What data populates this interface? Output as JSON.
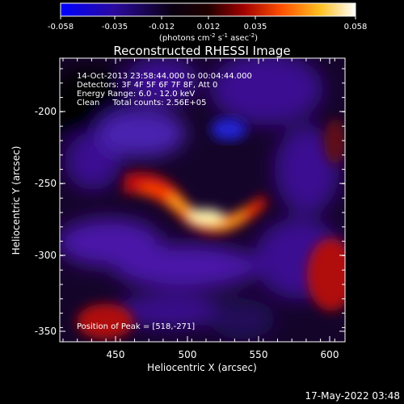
{
  "colorbar": {
    "ticks": [
      "-0.058",
      "-0.035",
      "-0.012",
      "0.012",
      "0.035",
      "0.058"
    ],
    "units_prefix": "(photons cm",
    "units_exp1": "-2",
    "units_mid": " s",
    "units_exp2": "-1",
    "units_mid2": " asec",
    "units_exp3": "-2",
    "units_suffix": ")",
    "colors": [
      "#0000ff",
      "#400080",
      "#000000",
      "#800000",
      "#ff3000",
      "#ff9000",
      "#ffe040",
      "#ffffff"
    ]
  },
  "plot": {
    "title": "Reconstructed RHESSI Image",
    "xlabel": "Heliocentric X (arcsec)",
    "ylabel": "Heliocentric Y (arcsec)",
    "xticks": [
      "450",
      "500",
      "550",
      "600"
    ],
    "yticks": [
      "-200",
      "-250",
      "-300",
      "-350"
    ],
    "info_lines": [
      "14-Oct-2013 23:58:44.000 to 00:04:44.000",
      "Detectors: 3F 4F 5F 6F 7F 8F, Att 0",
      "Energy Range: 6.0 - 12.0 keV",
      "Clean     Total counts: 2.56E+05"
    ],
    "peak_text": "Position of Peak = [518,-271]"
  },
  "footer": {
    "timestamp": "17-May-2022 03:48"
  }
}
